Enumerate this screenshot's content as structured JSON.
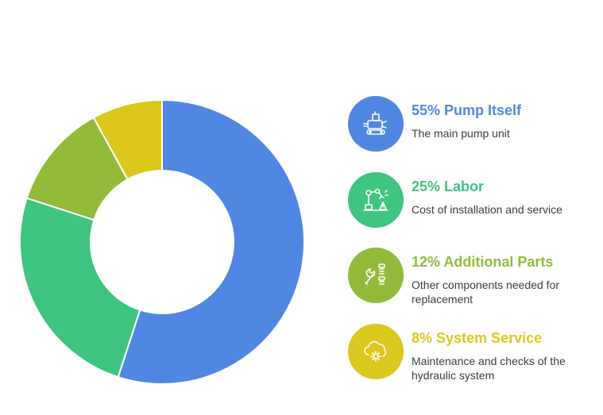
{
  "chart_data": {
    "type": "pie",
    "variant": "donut",
    "start_angle_deg": 0,
    "direction": "clockwise",
    "slices": [
      {
        "label": "Pump Itself",
        "percent_label": "55%",
        "value": 55,
        "color": "#4f87e3"
      },
      {
        "label": "Labor",
        "percent_label": "25%",
        "value": 25,
        "color": "#3ec47f"
      },
      {
        "label": "Additional Parts",
        "percent_label": "12%",
        "value": 12,
        "color": "#93bb3a"
      },
      {
        "label": "System Service",
        "percent_label": "8%",
        "value": 8,
        "color": "#dcc81c"
      }
    ]
  },
  "legend": [
    {
      "title": "55% Pump Itself",
      "desc": "The main pump unit",
      "icon": "pump-machine-icon",
      "color": "#4f87e3"
    },
    {
      "title": "25% Labor",
      "desc": "Cost of installation and service",
      "icon": "robotic-arm-icon",
      "color": "#3ec47f"
    },
    {
      "title": "12% Additional Parts",
      "desc": "Other components needed for replacement",
      "icon": "wrench-bolts-icon",
      "color": "#93bb3a"
    },
    {
      "title": "8% System Service",
      "desc": "Maintenance and checks of the hydraulic system",
      "icon": "cloud-gear-icon",
      "color": "#dcc81c"
    }
  ]
}
